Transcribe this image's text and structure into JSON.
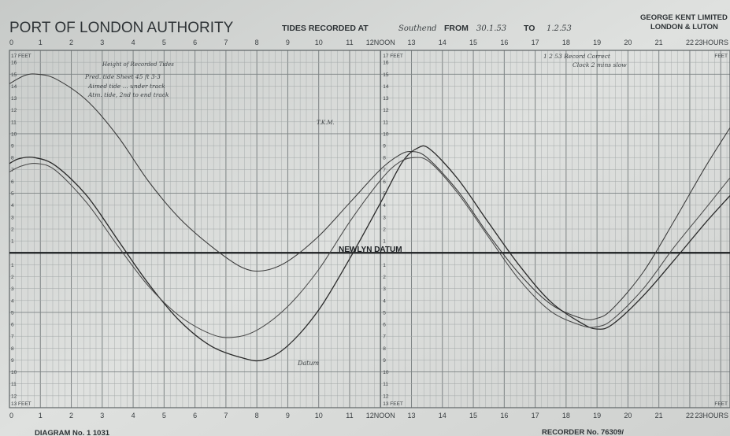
{
  "header": {
    "title": "PORT OF LONDON AUTHORITY",
    "recorded_prefix": "TIDES RECORDED AT",
    "location": "Southend",
    "from_label": "FROM",
    "from_date": "30.1.53",
    "to_label": "TO",
    "to_date": "1.2.53",
    "maker_name": "GEORGE KENT LIMITED",
    "maker_place": "LONDON & LUTON"
  },
  "footer": {
    "diagram_label": "DIAGRAM No. 1 1031",
    "recorder_label": "RECORDER No. 76309/"
  },
  "annotations": {
    "handwritten_block": [
      "Height of Recorded Tides",
      "Pred. tide Sheet 45 ft 3·3",
      "Aimed tide ... under track",
      "Atm. tide, 2nd to end track"
    ],
    "top_right_note": [
      "1 2 53 Record Correct",
      "Clock 2 mins slow"
    ],
    "tkm": "T.K.M.",
    "datum": "NEWLYN DATUM",
    "curve_note": "Datum"
  },
  "chart_data": {
    "type": "line",
    "x_axis": {
      "range": [
        0,
        23.3
      ],
      "ticks_top": [
        "0",
        "1",
        "2",
        "3",
        "4",
        "5",
        "6",
        "7",
        "8",
        "9",
        "10",
        "11",
        "12NOON",
        "13",
        "14",
        "15",
        "16",
        "17",
        "18",
        "19",
        "20",
        "21",
        "22",
        "23HOURS"
      ],
      "ticks_bottom": [
        "0",
        "1",
        "2",
        "3",
        "4",
        "5",
        "6",
        "7",
        "8",
        "9",
        "10",
        "11",
        "12NOON",
        "13",
        "14",
        "15",
        "16",
        "17",
        "18",
        "19",
        "20",
        "21",
        "22",
        "23HOURS"
      ]
    },
    "y_axis": {
      "range": [
        -13,
        17
      ],
      "unit": "FEET",
      "top_label": "17 FEET",
      "bottom_label": "13 FEET",
      "left_top_label": "17 FEET",
      "left_bottom_label": "13 FEET",
      "right_label": "FEET",
      "right_bottom_label": "FEET",
      "ticks_above": [
        "16",
        "15",
        "14",
        "13",
        "12",
        "11",
        "10",
        "9",
        "8",
        "7",
        "6",
        "5",
        "4",
        "3",
        "2",
        "1"
      ],
      "ticks_below": [
        "1",
        "2",
        "3",
        "4",
        "5",
        "6",
        "7",
        "8",
        "9",
        "10",
        "11",
        "12"
      ]
    },
    "datum_line": 0,
    "grid": true,
    "series": [
      {
        "name": "",
        "color": "#3a3a3a",
        "points": [
          [
            0,
            14.2
          ],
          [
            0.5,
            14.9
          ],
          [
            0.9,
            15.0
          ],
          [
            1.5,
            14.6
          ],
          [
            2.5,
            12.8
          ],
          [
            3.5,
            9.8
          ],
          [
            4.5,
            6.0
          ],
          [
            5.5,
            2.9
          ],
          [
            6.5,
            0.6
          ],
          [
            7.5,
            -1.2
          ],
          [
            8.2,
            -1.5
          ],
          [
            9.0,
            -0.7
          ],
          [
            10,
            1.4
          ],
          [
            11,
            4.2
          ],
          [
            12,
            7.0
          ],
          [
            12.6,
            8.2
          ],
          [
            13.0,
            8.5
          ],
          [
            13.5,
            8.0
          ],
          [
            14.5,
            5.2
          ],
          [
            15.5,
            1.5
          ],
          [
            16.5,
            -1.8
          ],
          [
            17.5,
            -4.3
          ],
          [
            18.5,
            -5.5
          ],
          [
            19.0,
            -5.5
          ],
          [
            19.5,
            -4.7
          ],
          [
            20.5,
            -1.6
          ],
          [
            21.5,
            2.7
          ],
          [
            22.5,
            7.2
          ],
          [
            23.3,
            10.5
          ]
        ]
      },
      {
        "name": "",
        "color": "#2a2a2a",
        "points": [
          [
            0,
            7.5
          ],
          [
            0.3,
            7.9
          ],
          [
            0.8,
            8.0
          ],
          [
            1.5,
            7.3
          ],
          [
            2.5,
            4.8
          ],
          [
            3.5,
            1.1
          ],
          [
            4.5,
            -2.6
          ],
          [
            5.5,
            -5.7
          ],
          [
            6.5,
            -7.8
          ],
          [
            7.5,
            -8.8
          ],
          [
            8.2,
            -9.0
          ],
          [
            9.0,
            -7.8
          ],
          [
            10,
            -4.8
          ],
          [
            11,
            -0.5
          ],
          [
            12,
            4.2
          ],
          [
            12.7,
            7.6
          ],
          [
            13.2,
            8.8
          ],
          [
            13.6,
            8.7
          ],
          [
            14.5,
            6.2
          ],
          [
            15.5,
            2.5
          ],
          [
            16.5,
            -1.1
          ],
          [
            17.5,
            -4.1
          ],
          [
            18.5,
            -5.9
          ],
          [
            19.0,
            -6.4
          ],
          [
            19.5,
            -6.0
          ],
          [
            20.5,
            -3.6
          ],
          [
            21.5,
            -0.6
          ],
          [
            22.5,
            2.5
          ],
          [
            23.3,
            4.8
          ]
        ]
      },
      {
        "name": "",
        "color": "#4a4a4a",
        "points": [
          [
            0,
            6.8
          ],
          [
            0.4,
            7.3
          ],
          [
            0.9,
            7.5
          ],
          [
            1.5,
            6.9
          ],
          [
            2.5,
            4.2
          ],
          [
            3.5,
            0.6
          ],
          [
            4.5,
            -2.8
          ],
          [
            5.5,
            -5.3
          ],
          [
            6.5,
            -6.8
          ],
          [
            7.2,
            -7.1
          ],
          [
            8.0,
            -6.5
          ],
          [
            9.0,
            -4.5
          ],
          [
            10,
            -1.4
          ],
          [
            11,
            2.6
          ],
          [
            12,
            6.1
          ],
          [
            12.6,
            7.6
          ],
          [
            13.1,
            8.0
          ],
          [
            13.6,
            7.6
          ],
          [
            14.5,
            5.0
          ],
          [
            15.5,
            1.3
          ],
          [
            16.5,
            -2.3
          ],
          [
            17.5,
            -4.9
          ],
          [
            18.5,
            -6.1
          ],
          [
            19.0,
            -6.2
          ],
          [
            19.5,
            -5.6
          ],
          [
            20.5,
            -3.0
          ],
          [
            21.5,
            0.5
          ],
          [
            22.5,
            3.7
          ],
          [
            23.3,
            6.3
          ]
        ]
      }
    ]
  }
}
